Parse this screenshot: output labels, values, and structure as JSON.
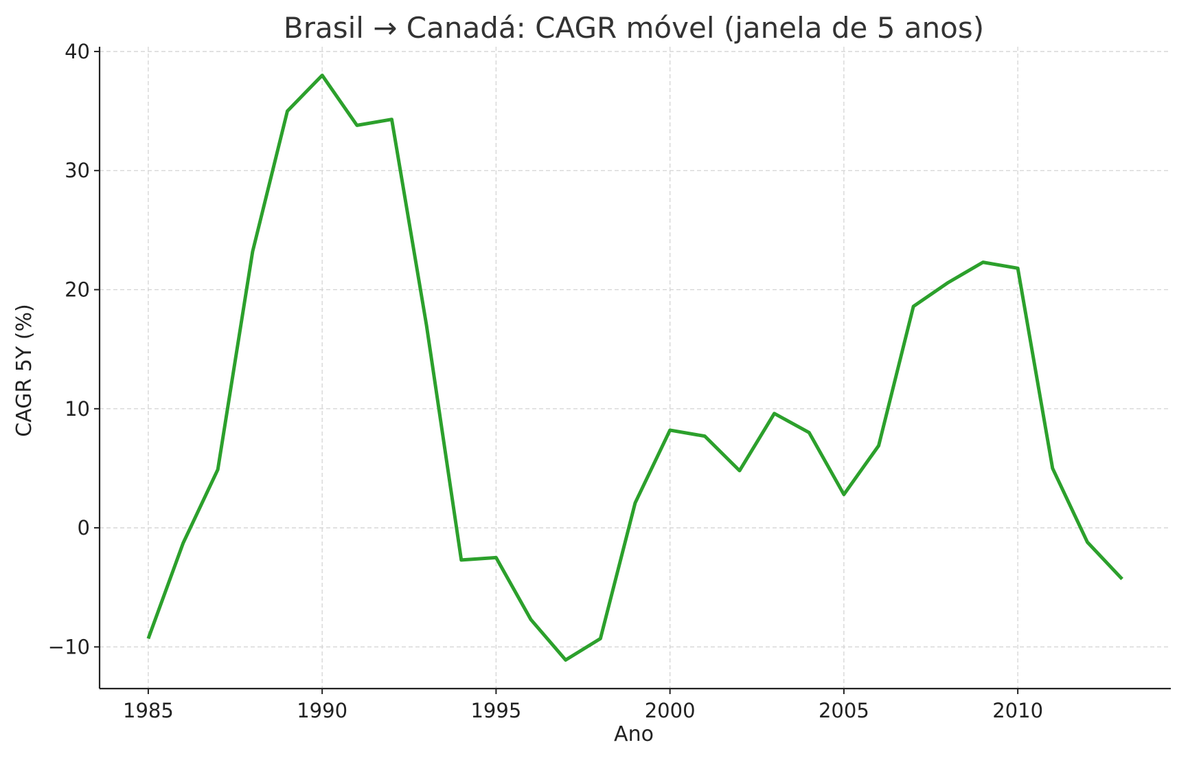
{
  "chart_data": {
    "type": "line",
    "title": "Brasil → Canadá: CAGR móvel (janela de 5 anos)",
    "xlabel": "Ano",
    "ylabel": "CAGR 5Y (%)",
    "xlim": [
      1983.6,
      2014.4
    ],
    "ylim": [
      -13.5,
      40.4
    ],
    "xticks": [
      1985,
      1990,
      1995,
      2000,
      2005,
      2010
    ],
    "yticks": [
      -10,
      0,
      10,
      20,
      30,
      40
    ],
    "ytick_labels": [
      "−10",
      "0",
      "10",
      "20",
      "30",
      "40"
    ],
    "grid": true,
    "series": [
      {
        "color": "#2ca02c",
        "x": [
          1985,
          1986,
          1987,
          1988,
          1989,
          1990,
          1991,
          1992,
          1993,
          1994,
          1995,
          1996,
          1997,
          1998,
          1999,
          2000,
          2001,
          2002,
          2003,
          2004,
          2005,
          2006,
          2007,
          2008,
          2009,
          2010,
          2011,
          2012,
          2013
        ],
        "y": [
          -9.3,
          -1.3,
          4.9,
          23.2,
          35.0,
          38.0,
          33.8,
          34.3,
          17.0,
          -2.7,
          -2.5,
          -7.7,
          -11.1,
          -9.3,
          2.1,
          8.2,
          7.7,
          4.8,
          9.6,
          8.0,
          2.8,
          6.9,
          18.6,
          20.6,
          22.3,
          21.8,
          5.0,
          -1.2,
          -4.3
        ]
      }
    ]
  }
}
